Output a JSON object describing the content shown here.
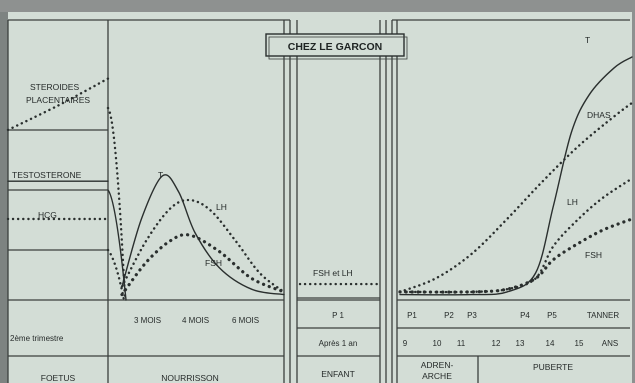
{
  "title": "CHEZ LE GARCON",
  "colors": {
    "paper": "#d3ddd6",
    "ink": "#2a2f2e",
    "frame": "#3b403e"
  },
  "hormone_labels": {
    "steroides_line1": "STEROIDES",
    "steroides_line2": "PLACENTAIRES",
    "testosterone": "TESTOSTERONE",
    "hcg": "HCG"
  },
  "series_labels": {
    "t_infant": "T",
    "lh_infant": "LH",
    "fsh_infant": "FSH",
    "fsh_lh_child": "FSH et LH",
    "t_puberty": "T",
    "dhas": "DHAS",
    "lh_puberty": "LH",
    "fsh_puberty": "FSH"
  },
  "age_axis": {
    "left_label": "2ème trimestre",
    "infant_ticks": [
      "3 MOIS",
      "4 MOIS",
      "6 MOIS"
    ],
    "child_stage": "P 1",
    "child_age": "Après 1 an",
    "puberty_stages": [
      "P1",
      "P2",
      "P3",
      "P4",
      "P5",
      "TANNER"
    ],
    "puberty_ages": [
      "9",
      "10",
      "11",
      "12",
      "13",
      "14",
      "15",
      "ANS"
    ]
  },
  "periods": {
    "foetus": "FOETUS",
    "nourrisson": "NOURRISSON",
    "enfant": "ENFANT",
    "adrenarche_line1": "ADREN-",
    "adrenarche_line2": "ARCHE",
    "puberte": "PUBERTE"
  },
  "chart_data": {
    "type": "line",
    "title": "CHEZ LE GARCON",
    "note": "Values are relative levels (0 = baseline, 1 = maximum) read from the unscaled curves",
    "panels": [
      {
        "period": "FOETUS",
        "x_label": "2ème trimestre",
        "series": [
          {
            "name": "STEROIDES PLACENTAIRES",
            "style": "dotted",
            "x": [
              0,
              0.5,
              1
            ],
            "y": [
              0.63,
              0.72,
              0.82
            ]
          },
          {
            "name": "TESTOSTERONE",
            "style": "solid",
            "x": [
              0,
              1
            ],
            "y": [
              0.44,
              0.44
            ]
          },
          {
            "name": "HCG",
            "style": "dotted",
            "x": [
              0,
              1
            ],
            "y": [
              0.3,
              0.3
            ]
          }
        ]
      },
      {
        "period": "NOURRISSON",
        "x_ticks": [
          "3 MOIS",
          "4 MOIS",
          "6 MOIS"
        ],
        "series": [
          {
            "name": "T",
            "style": "solid",
            "x": [
              0,
              0.12,
              0.25,
              0.35,
              0.45,
              0.6,
              0.8,
              1
            ],
            "y": [
              0.05,
              0.3,
              0.46,
              0.4,
              0.25,
              0.12,
              0.04,
              0.02
            ]
          },
          {
            "name": "LH",
            "style": "dotted",
            "x": [
              0,
              0.15,
              0.3,
              0.42,
              0.55,
              0.7,
              0.85,
              1
            ],
            "y": [
              0.05,
              0.22,
              0.34,
              0.37,
              0.33,
              0.22,
              0.1,
              0.03
            ]
          },
          {
            "name": "FSH",
            "style": "dotted-bold",
            "x": [
              0,
              0.15,
              0.3,
              0.42,
              0.6,
              0.8,
              1
            ],
            "y": [
              0.02,
              0.14,
              0.22,
              0.24,
              0.18,
              0.08,
              0.03
            ]
          }
        ]
      },
      {
        "period": "ENFANT",
        "x_ticks": [
          "P 1",
          "Après 1 an"
        ],
        "series": [
          {
            "name": "FSH et LH",
            "style": "dotted",
            "x": [
              0,
              1
            ],
            "y": [
              0.03,
              0.03
            ]
          }
        ]
      },
      {
        "period": "ADRENARCHE / PUBERTE",
        "x_ticks": [
          "9",
          "10",
          "11",
          "12",
          "13",
          "14",
          "15",
          "ANS"
        ],
        "stage_ticks": [
          "P1",
          "P2",
          "P3",
          "P4",
          "P5",
          "TANNER"
        ],
        "series": [
          {
            "name": "T",
            "style": "solid",
            "x": [
              9,
              11,
              12,
              12.8,
              13.3,
              13.8,
              14.3,
              15,
              15.5
            ],
            "y": [
              0.02,
              0.02,
              0.03,
              0.1,
              0.35,
              0.62,
              0.76,
              0.86,
              0.9
            ]
          },
          {
            "name": "DHAS",
            "style": "dotted",
            "x": [
              9,
              10,
              11,
              12,
              13,
              14,
              15,
              15.5
            ],
            "y": [
              0.03,
              0.08,
              0.17,
              0.3,
              0.44,
              0.57,
              0.68,
              0.73
            ]
          },
          {
            "name": "LH",
            "style": "dotted",
            "x": [
              9,
              11,
              12,
              12.8,
              13.3,
              14,
              14.7,
              15.5
            ],
            "y": [
              0.03,
              0.03,
              0.04,
              0.08,
              0.2,
              0.3,
              0.38,
              0.45
            ]
          },
          {
            "name": "FSH",
            "style": "dotted-bold",
            "x": [
              9,
              11,
              12,
              12.8,
              13.3,
              14,
              14.7,
              15.5
            ],
            "y": [
              0.03,
              0.03,
              0.04,
              0.08,
              0.15,
              0.21,
              0.26,
              0.3
            ]
          }
        ]
      }
    ]
  }
}
